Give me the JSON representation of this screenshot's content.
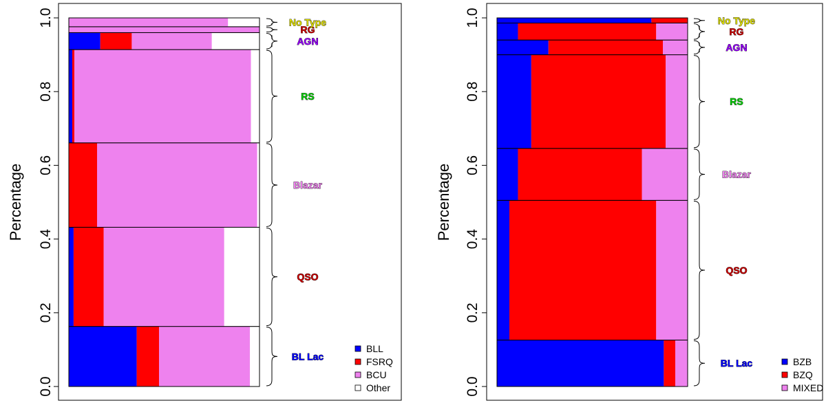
{
  "chart_data": [
    {
      "type": "mosaic",
      "ylabel": "Percentage",
      "ylim": [
        0,
        1
      ],
      "yticks": [
        "0.0",
        "0.2",
        "0.4",
        "0.6",
        "0.8",
        "1.0"
      ],
      "legend_position": "bottom-right",
      "series": [
        {
          "name": "BLL",
          "color": "#0000ff"
        },
        {
          "name": "FSRQ",
          "color": "#ff0000"
        },
        {
          "name": "BCU",
          "color": "#ee82ee"
        },
        {
          "name": "Other",
          "color": "#ffffff"
        }
      ],
      "categories": [
        {
          "name": "BL Lac",
          "color": "#0000ff",
          "y0": 0.0,
          "y1": 0.163,
          "fractions": [
            0.356,
            0.117,
            0.477,
            0.05
          ]
        },
        {
          "name": "QSO",
          "color": "#cc0000",
          "y0": 0.163,
          "y1": 0.432,
          "fractions": [
            0.025,
            0.158,
            0.632,
            0.185
          ]
        },
        {
          "name": "Blazar",
          "color": "#ee82ee",
          "y0": 0.432,
          "y1": 0.661,
          "fractions": [
            0.0,
            0.148,
            0.84,
            0.012
          ]
        },
        {
          "name": "RS",
          "color": "#00cc00",
          "y0": 0.661,
          "y1": 0.914,
          "fractions": [
            0.018,
            0.011,
            0.926,
            0.045
          ]
        },
        {
          "name": "AGN",
          "color": "#9900ff",
          "y0": 0.914,
          "y1": 0.96,
          "fractions": [
            0.165,
            0.165,
            0.42,
            0.25
          ]
        },
        {
          "name": "RG",
          "color": "#cc0000",
          "y0": 0.96,
          "y1": 0.976,
          "fractions": [
            0.0,
            0.0,
            1.0,
            0.0
          ]
        },
        {
          "name": "No Type",
          "color": "#dddd00",
          "y0": 0.976,
          "y1": 1.0,
          "fractions": [
            0.0,
            0.0,
            0.835,
            0.165
          ]
        }
      ]
    },
    {
      "type": "mosaic",
      "ylabel": "Percentage",
      "ylim": [
        0,
        1
      ],
      "yticks": [
        "0.0",
        "0.2",
        "0.4",
        "0.6",
        "0.8",
        "1.0"
      ],
      "legend_position": "bottom-right",
      "series": [
        {
          "name": "BZB",
          "color": "#0000ff"
        },
        {
          "name": "BZQ",
          "color": "#ff0000"
        },
        {
          "name": "MIXED",
          "color": "#ee82ee"
        }
      ],
      "categories": [
        {
          "name": "BL Lac",
          "color": "#0000ff",
          "y0": 0.0,
          "y1": 0.126,
          "fractions": [
            0.875,
            0.06,
            0.065
          ]
        },
        {
          "name": "QSO",
          "color": "#cc0000",
          "y0": 0.126,
          "y1": 0.505,
          "fractions": [
            0.065,
            0.77,
            0.165
          ]
        },
        {
          "name": "Blazar",
          "color": "#ee82ee",
          "y0": 0.505,
          "y1": 0.646,
          "fractions": [
            0.11,
            0.65,
            0.24
          ]
        },
        {
          "name": "RS",
          "color": "#00cc00",
          "y0": 0.646,
          "y1": 0.9,
          "fractions": [
            0.18,
            0.705,
            0.115
          ]
        },
        {
          "name": "AGN",
          "color": "#9900ff",
          "y0": 0.9,
          "y1": 0.94,
          "fractions": [
            0.27,
            0.6,
            0.13
          ]
        },
        {
          "name": "RG",
          "color": "#cc0000",
          "y0": 0.94,
          "y1": 0.986,
          "fractions": [
            0.11,
            0.725,
            0.165
          ]
        },
        {
          "name": "No Type",
          "color": "#dddd00",
          "y0": 0.986,
          "y1": 1.0,
          "fractions": [
            0.81,
            0.19,
            0.0
          ]
        }
      ]
    }
  ]
}
